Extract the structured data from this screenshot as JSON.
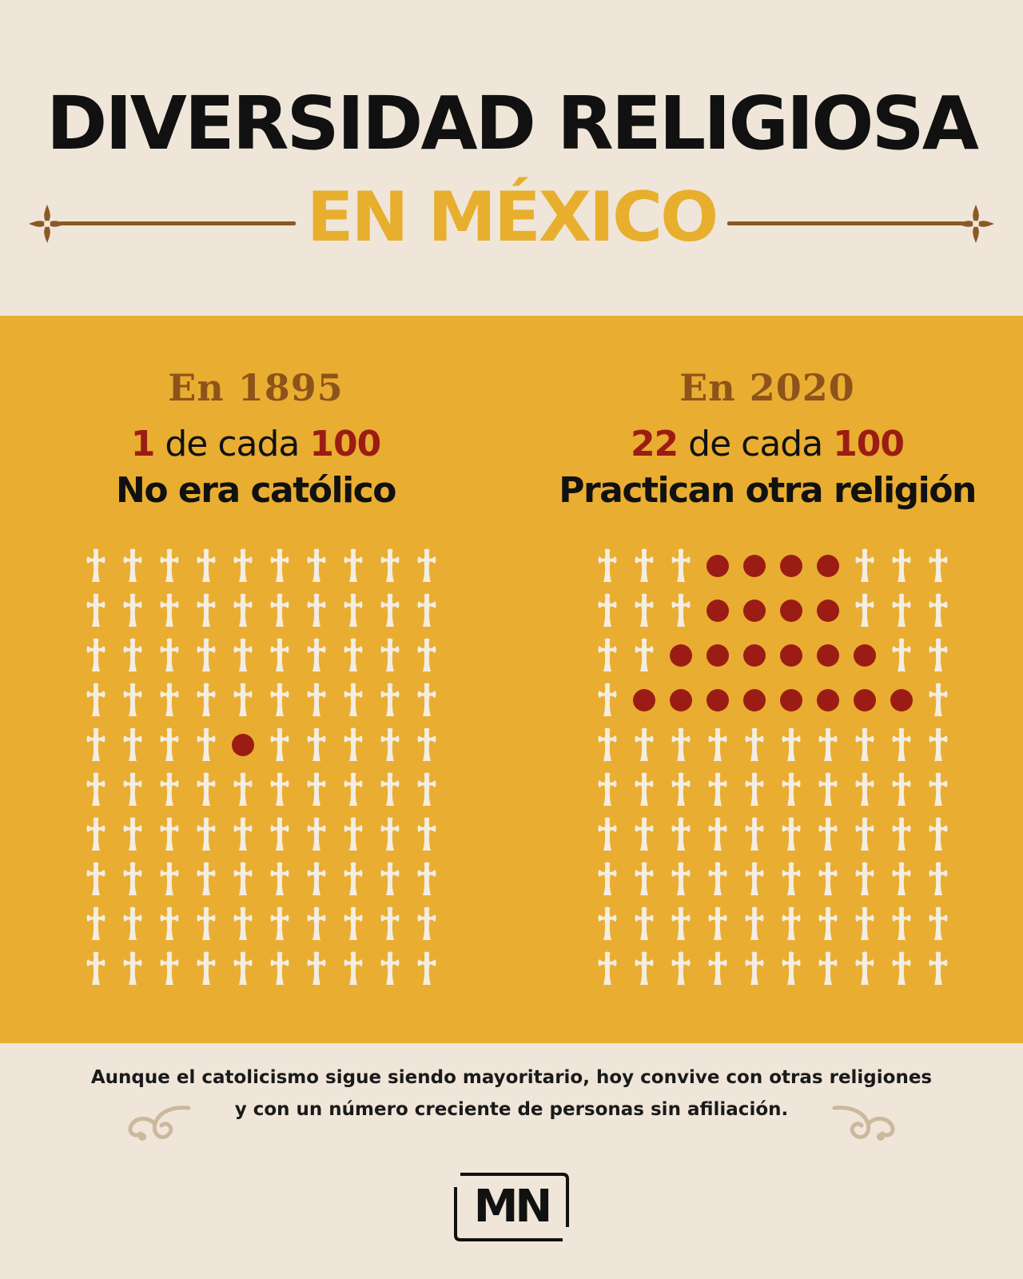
{
  "header": {
    "title": "DIVERSIDAD RELIGIOSA",
    "subtitle": "EN MÉXICO"
  },
  "colors": {
    "background": "#efe6d9",
    "band": "#e9ad31",
    "accent_red": "#9b1c14",
    "cross": "#f4ede2",
    "gold": "#e8ae2d"
  },
  "panels": [
    {
      "year_label": "En 1895",
      "stat_num": "1",
      "stat_mid": " de cada ",
      "stat_total": "100",
      "caption": "No era católico"
    },
    {
      "year_label": "En 2020",
      "stat_num": "22",
      "stat_mid": " de cada ",
      "stat_total": "100",
      "caption": "Practican otra religión"
    }
  ],
  "chart_data": [
    {
      "type": "waffle",
      "label": "En 1895",
      "rows": 10,
      "cols": 10,
      "total": 100,
      "highlighted": 1,
      "highlighted_cells": [
        [
          4,
          4
        ]
      ],
      "other_mark": "cross-icon",
      "highlight_mark": "dot"
    },
    {
      "type": "waffle",
      "label": "En 2020",
      "rows": 10,
      "cols": 10,
      "total": 100,
      "highlighted": 22,
      "highlighted_cells": [
        [
          0,
          3
        ],
        [
          0,
          4
        ],
        [
          0,
          5
        ],
        [
          0,
          6
        ],
        [
          1,
          3
        ],
        [
          1,
          4
        ],
        [
          1,
          5
        ],
        [
          1,
          6
        ],
        [
          2,
          2
        ],
        [
          2,
          3
        ],
        [
          2,
          4
        ],
        [
          2,
          5
        ],
        [
          2,
          6
        ],
        [
          2,
          7
        ],
        [
          3,
          1
        ],
        [
          3,
          2
        ],
        [
          3,
          3
        ],
        [
          3,
          4
        ],
        [
          3,
          5
        ],
        [
          3,
          6
        ],
        [
          3,
          7
        ],
        [
          3,
          8
        ]
      ],
      "other_mark": "cross-icon",
      "highlight_mark": "dot"
    }
  ],
  "footer": {
    "note_line1": "Aunque el catolicismo sigue siendo mayoritario, hoy convive con otras religiones",
    "note_line2": "y con un número creciente de personas sin afiliación.",
    "logo": "MN"
  }
}
